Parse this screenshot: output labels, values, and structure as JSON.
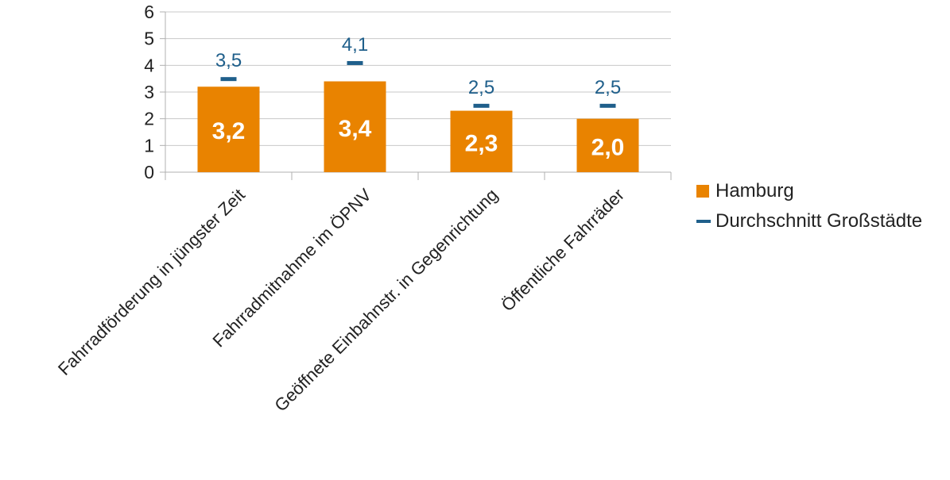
{
  "chart_data": {
    "type": "bar",
    "title": "",
    "xlabel": "",
    "ylabel": "",
    "ylim": [
      0,
      6
    ],
    "yticks": [
      "0",
      "1",
      "2",
      "3",
      "4",
      "5",
      "6"
    ],
    "grid": true,
    "legend_position": "right",
    "categories": [
      "Fahrradförderung in jüngster Zeit",
      "Fahrradmitnahme im ÖPNV",
      "Geöffnete Einbahnstr. in Gegenrichtung",
      "Öffentliche Fahrräder"
    ],
    "series": [
      {
        "name": "Hamburg",
        "type": "bar",
        "values": [
          3.2,
          3.4,
          2.3,
          2.0
        ],
        "labels": [
          "3,2",
          "3,4",
          "2,3",
          "2,0"
        ],
        "color": "#e98300"
      },
      {
        "name": "Durchschnitt Großstädte",
        "type": "marker",
        "values": [
          3.5,
          4.1,
          2.5,
          2.5
        ],
        "labels": [
          "3,5",
          "4,1",
          "2,5",
          "2,5"
        ],
        "color": "#1f5f8b"
      }
    ]
  }
}
